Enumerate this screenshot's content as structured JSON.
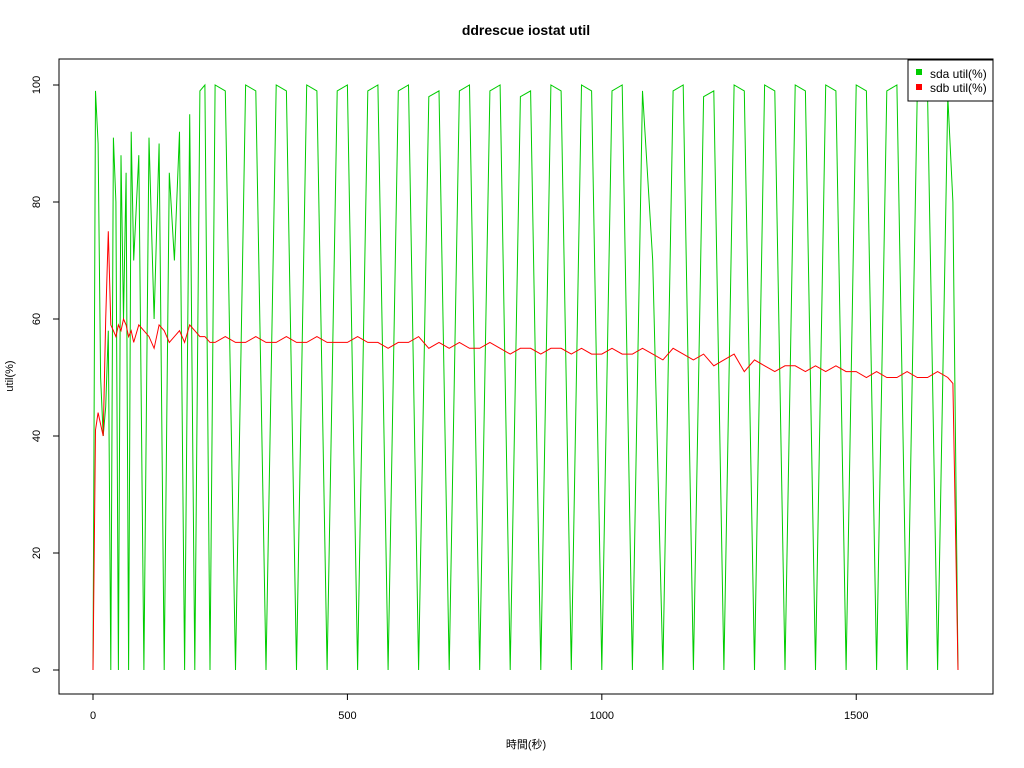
{
  "chart_data": {
    "type": "line",
    "title": "ddrescue iostat util",
    "xlabel": "時間(秒)",
    "ylabel": "util(%)",
    "xlim": [
      0,
      1700
    ],
    "ylim": [
      0,
      100
    ],
    "xticks": [
      0,
      500,
      1000,
      1500
    ],
    "yticks": [
      0,
      20,
      40,
      60,
      80,
      100
    ],
    "legend": {
      "position": "top-right"
    },
    "series": [
      {
        "name": "sda util(%)",
        "color": "#00cc00",
        "x": [
          0,
          5,
          10,
          15,
          20,
          25,
          30,
          35,
          40,
          45,
          50,
          55,
          60,
          65,
          70,
          75,
          80,
          90,
          100,
          110,
          120,
          130,
          140,
          150,
          160,
          170,
          180,
          190,
          200,
          210,
          220,
          230,
          240,
          260,
          280,
          300,
          320,
          340,
          360,
          380,
          400,
          420,
          440,
          460,
          480,
          500,
          520,
          540,
          560,
          580,
          600,
          620,
          640,
          660,
          680,
          700,
          720,
          740,
          760,
          780,
          800,
          820,
          840,
          860,
          880,
          900,
          920,
          940,
          960,
          980,
          1000,
          1020,
          1040,
          1060,
          1080,
          1100,
          1120,
          1140,
          1160,
          1180,
          1200,
          1220,
          1240,
          1260,
          1280,
          1300,
          1320,
          1340,
          1360,
          1380,
          1400,
          1420,
          1440,
          1460,
          1480,
          1500,
          1520,
          1540,
          1560,
          1580,
          1600,
          1620,
          1640,
          1660,
          1680,
          1690,
          1700
        ],
        "y": [
          0,
          99,
          90,
          50,
          40,
          45,
          58,
          0,
          91,
          80,
          0,
          88,
          60,
          85,
          0,
          92,
          70,
          88,
          0,
          91,
          60,
          90,
          0,
          85,
          70,
          92,
          0,
          95,
          0,
          99,
          100,
          0,
          100,
          99,
          0,
          100,
          99,
          0,
          100,
          99,
          0,
          100,
          99,
          0,
          99,
          100,
          0,
          99,
          100,
          0,
          99,
          100,
          0,
          98,
          99,
          0,
          99,
          100,
          0,
          99,
          100,
          0,
          98,
          99,
          0,
          100,
          99,
          0,
          100,
          99,
          0,
          99,
          100,
          0,
          99,
          70,
          0,
          99,
          100,
          0,
          98,
          99,
          0,
          100,
          99,
          0,
          100,
          99,
          0,
          100,
          99,
          0,
          100,
          99,
          0,
          100,
          99,
          0,
          99,
          100,
          0,
          99,
          99,
          0,
          98,
          80,
          0
        ]
      },
      {
        "name": "sdb util(%)",
        "color": "#ff0000",
        "x": [
          0,
          5,
          10,
          15,
          20,
          25,
          30,
          35,
          40,
          45,
          50,
          55,
          60,
          65,
          70,
          75,
          80,
          90,
          100,
          110,
          120,
          130,
          140,
          150,
          160,
          170,
          180,
          190,
          200,
          210,
          220,
          230,
          240,
          260,
          280,
          300,
          320,
          340,
          360,
          380,
          400,
          420,
          440,
          460,
          480,
          500,
          520,
          540,
          560,
          580,
          600,
          620,
          640,
          660,
          680,
          700,
          720,
          740,
          760,
          780,
          800,
          820,
          840,
          860,
          880,
          900,
          920,
          940,
          960,
          980,
          1000,
          1020,
          1040,
          1060,
          1080,
          1100,
          1120,
          1140,
          1160,
          1180,
          1200,
          1220,
          1240,
          1260,
          1280,
          1300,
          1320,
          1340,
          1360,
          1380,
          1400,
          1420,
          1440,
          1460,
          1480,
          1500,
          1520,
          1540,
          1560,
          1580,
          1600,
          1620,
          1640,
          1660,
          1680,
          1690,
          1700
        ],
        "y": [
          0,
          41,
          44,
          42,
          40,
          60,
          75,
          59,
          58,
          57,
          59,
          58,
          60,
          59,
          57,
          58,
          56,
          59,
          58,
          57,
          55,
          59,
          58,
          56,
          57,
          58,
          56,
          59,
          58,
          57,
          57,
          56,
          56,
          57,
          56,
          56,
          57,
          56,
          56,
          57,
          56,
          56,
          57,
          56,
          56,
          56,
          57,
          56,
          56,
          55,
          56,
          56,
          57,
          55,
          56,
          55,
          56,
          55,
          55,
          56,
          55,
          54,
          55,
          55,
          54,
          55,
          55,
          54,
          55,
          54,
          54,
          55,
          54,
          54,
          55,
          54,
          53,
          55,
          54,
          53,
          54,
          52,
          53,
          54,
          51,
          53,
          52,
          51,
          52,
          52,
          51,
          52,
          51,
          52,
          51,
          51,
          50,
          51,
          50,
          50,
          51,
          50,
          50,
          51,
          50,
          49,
          0
        ]
      }
    ]
  }
}
